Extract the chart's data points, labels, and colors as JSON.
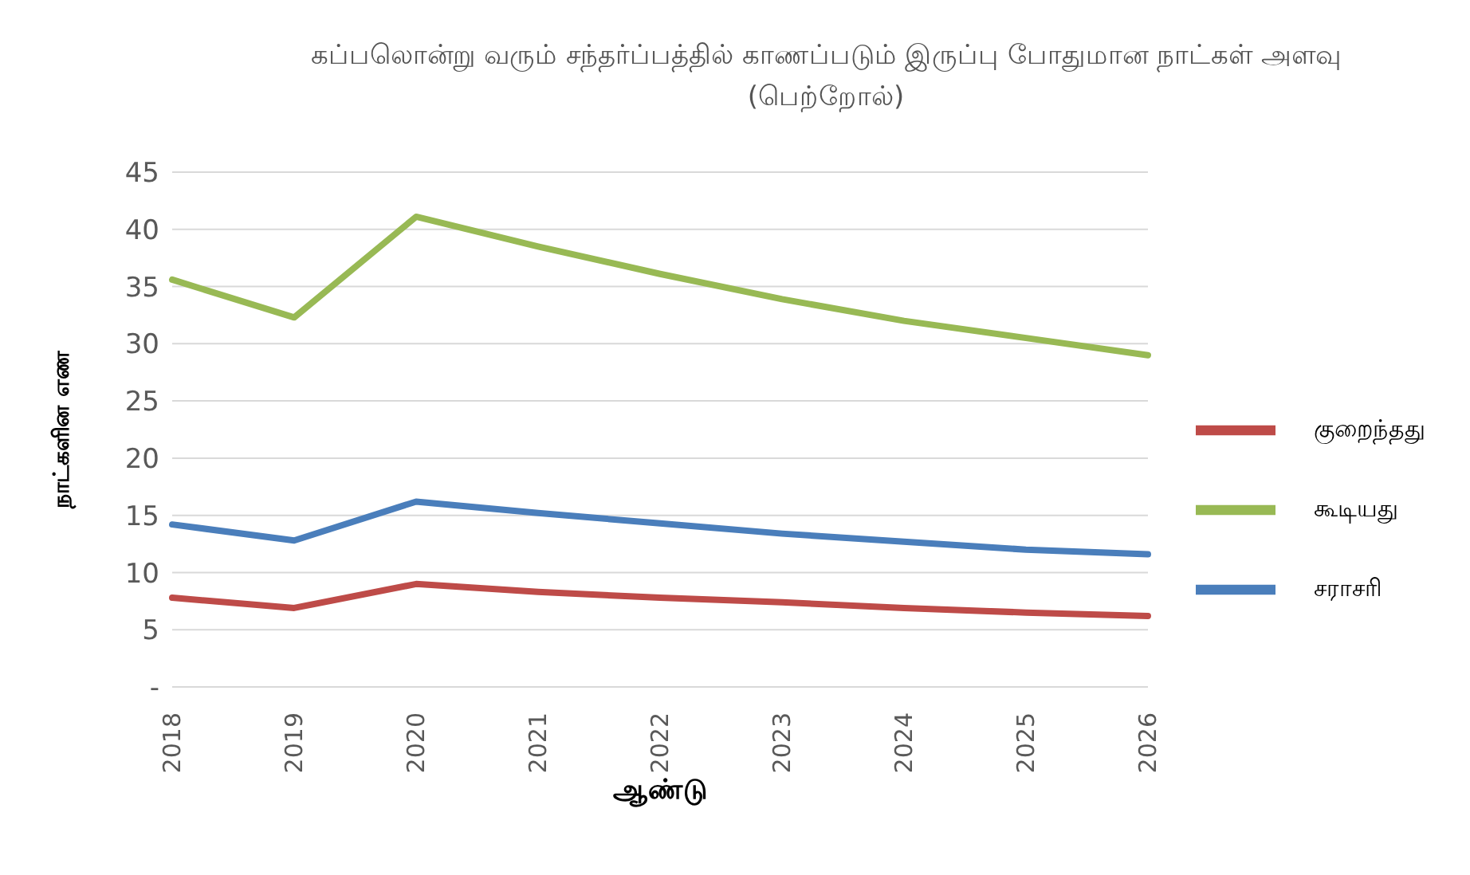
{
  "chart_data": {
    "type": "line",
    "title": "கப்பலொன்று வரும் சந்தர்ப்பத்தில் காணப்படும் இருப்பு போதுமான நாட்கள் அளவு (பெற்றோல்)",
    "xlabel": "ஆண்டு",
    "ylabel": "நாட்களின எண",
    "categories": [
      "2018",
      "2019",
      "2020",
      "2021",
      "2022",
      "2023",
      "2024",
      "2025",
      "2026"
    ],
    "series": [
      {
        "name": "சராசரி",
        "color": "#4a7ebb",
        "values": [
          14.2,
          12.8,
          16.2,
          15.2,
          14.3,
          13.4,
          12.7,
          12.0,
          11.6
        ]
      },
      {
        "name": "குறைந்தது",
        "color": "#be4b48",
        "values": [
          7.8,
          6.9,
          9.0,
          8.3,
          7.8,
          7.4,
          6.9,
          6.5,
          6.2
        ]
      },
      {
        "name": "கூடியது",
        "color": "#98b954",
        "values": [
          35.6,
          32.3,
          41.1,
          38.5,
          36.1,
          33.9,
          32.0,
          30.5,
          29.0
        ]
      }
    ],
    "ylim": [
      0,
      45
    ],
    "yticks": [
      {
        "value": 0,
        "label": "-"
      },
      5,
      10,
      15,
      20,
      25,
      30,
      35,
      40,
      45
    ],
    "grid": "y",
    "legend": "right",
    "marker": "none",
    "line_style": "solid"
  }
}
